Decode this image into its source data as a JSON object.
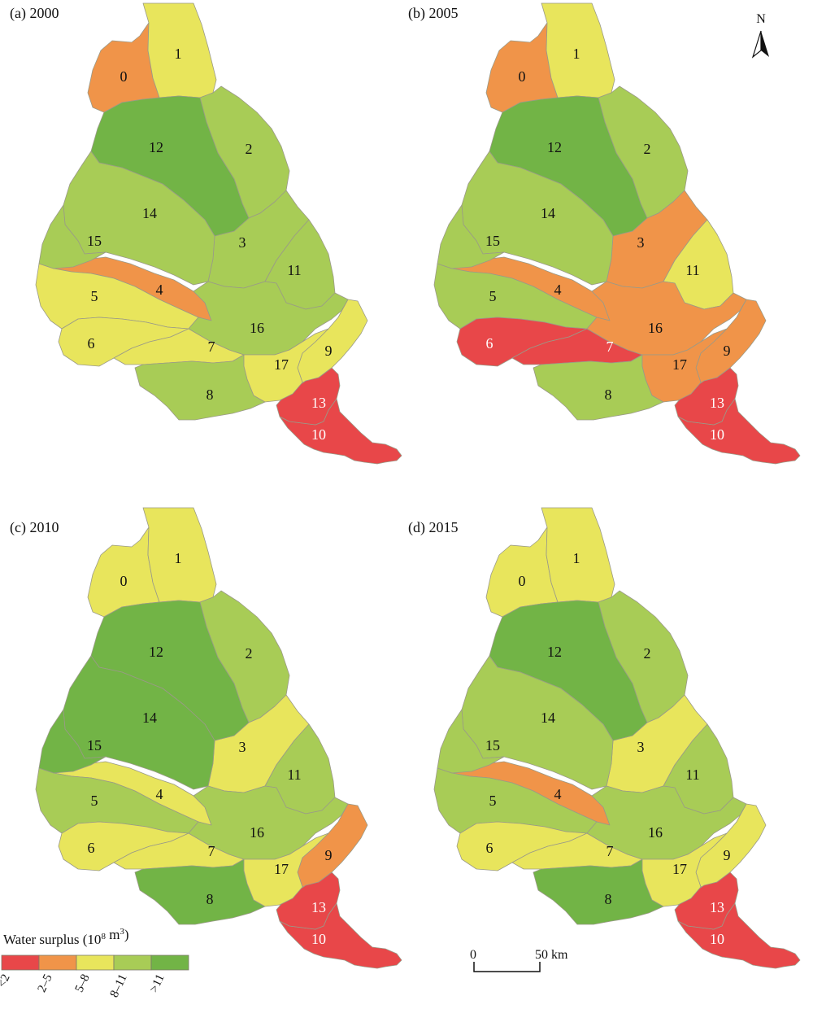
{
  "colors": {
    "lt2": "#e84749",
    "c2_5": "#f09449",
    "c5_8": "#e8e55c",
    "c8_11": "#a8cc56",
    "gt11": "#72b446"
  },
  "panels": [
    {
      "title": "(a) 2000",
      "classes": {
        "0": "c2_5",
        "1": "c5_8",
        "2": "c8_11",
        "3": "c8_11",
        "4": "c2_5",
        "5": "c5_8",
        "6": "c5_8",
        "7": "c5_8",
        "8": "c8_11",
        "9": "c5_8",
        "10": "lt2",
        "11": "c8_11",
        "12": "gt11",
        "13": "lt2",
        "14": "c8_11",
        "15": "c8_11",
        "16": "c8_11",
        "17": "c5_8"
      }
    },
    {
      "title": "(b) 2005",
      "classes": {
        "0": "c2_5",
        "1": "c5_8",
        "2": "c8_11",
        "3": "c2_5",
        "4": "c2_5",
        "5": "c8_11",
        "6": "lt2",
        "7": "lt2",
        "8": "c8_11",
        "9": "c2_5",
        "10": "lt2",
        "11": "c5_8",
        "12": "gt11",
        "13": "lt2",
        "14": "c8_11",
        "15": "c8_11",
        "16": "c2_5",
        "17": "c2_5"
      }
    },
    {
      "title": "(c) 2010",
      "classes": {
        "0": "c5_8",
        "1": "c5_8",
        "2": "c8_11",
        "3": "c5_8",
        "4": "c5_8",
        "5": "c8_11",
        "6": "c5_8",
        "7": "c5_8",
        "8": "gt11",
        "9": "c2_5",
        "10": "lt2",
        "11": "c8_11",
        "12": "gt11",
        "13": "lt2",
        "14": "gt11",
        "15": "gt11",
        "16": "c8_11",
        "17": "c5_8"
      }
    },
    {
      "title": "(d) 2015",
      "classes": {
        "0": "c5_8",
        "1": "c5_8",
        "2": "c8_11",
        "3": "c5_8",
        "4": "c2_5",
        "5": "c8_11",
        "6": "c5_8",
        "7": "c5_8",
        "8": "gt11",
        "9": "c5_8",
        "10": "lt2",
        "11": "c8_11",
        "12": "gt11",
        "13": "lt2",
        "14": "c8_11",
        "15": "c8_11",
        "16": "c8_11",
        "17": "c5_8"
      }
    }
  ],
  "region_ids": [
    "0",
    "1",
    "2",
    "3",
    "4",
    "5",
    "6",
    "7",
    "8",
    "9",
    "10",
    "11",
    "12",
    "13",
    "14",
    "15",
    "16",
    "17"
  ],
  "legend": {
    "title": "Water surplus (10",
    "title_sup": "8",
    "title_unit": " m",
    "title_sup2": "3",
    "title_close": ")",
    "items": [
      {
        "label": "<2",
        "class": "lt2"
      },
      {
        "label": "2–5",
        "class": "c2_5"
      },
      {
        "label": "5–8",
        "class": "c5_8"
      },
      {
        "label": "8–11",
        "class": "c8_11"
      },
      {
        "label": ">11",
        "class": "gt11"
      }
    ]
  },
  "north": "N",
  "scale": {
    "start": "0",
    "end": "50 km"
  }
}
